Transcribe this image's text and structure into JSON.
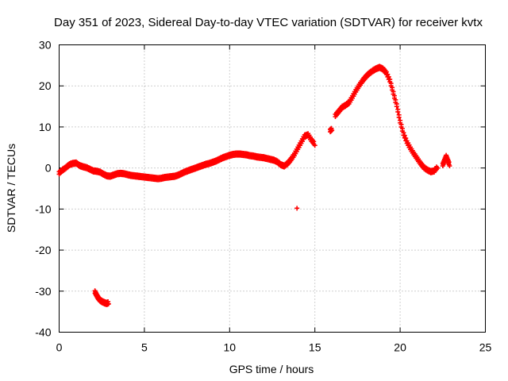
{
  "chart_data": {
    "type": "scatter",
    "title": "Day 351 of 2023, Sidereal Day-to-day VTEC variation (SDTVAR) for receiver kvtx",
    "xlabel": "GPS time / hours",
    "ylabel": "SDTVAR / TECUs",
    "xlim": [
      0,
      25
    ],
    "ylim": [
      -40,
      30
    ],
    "xticks": [
      0,
      5,
      10,
      15,
      20,
      25
    ],
    "yticks": [
      -40,
      -30,
      -20,
      -10,
      0,
      10,
      20,
      30
    ],
    "grid": true,
    "marker": "+",
    "series": [
      {
        "name": "SDTVAR",
        "color": "#ff0000",
        "segments": [
          [
            [
              0.0,
              -1.5
            ],
            [
              0.2,
              -0.8
            ],
            [
              0.4,
              -0.2
            ],
            [
              0.6,
              0.5
            ],
            [
              0.8,
              0.8
            ],
            [
              1.0,
              0.9
            ],
            [
              1.2,
              0.3
            ],
            [
              1.4,
              0.0
            ],
            [
              1.6,
              -0.2
            ],
            [
              1.8,
              -0.6
            ],
            [
              2.0,
              -1.0
            ],
            [
              2.2,
              -1.1
            ],
            [
              2.4,
              -1.3
            ],
            [
              2.6,
              -1.8
            ],
            [
              2.8,
              -2.2
            ],
            [
              3.0,
              -2.3
            ],
            [
              3.2,
              -2.0
            ],
            [
              3.4,
              -1.7
            ],
            [
              3.6,
              -1.6
            ],
            [
              3.8,
              -1.7
            ],
            [
              4.0,
              -1.9
            ],
            [
              4.2,
              -2.1
            ],
            [
              4.4,
              -2.2
            ],
            [
              4.6,
              -2.3
            ],
            [
              4.8,
              -2.4
            ],
            [
              5.0,
              -2.5
            ],
            [
              5.2,
              -2.6
            ],
            [
              5.4,
              -2.7
            ],
            [
              5.6,
              -2.8
            ],
            [
              5.8,
              -2.9
            ],
            [
              6.0,
              -2.8
            ],
            [
              6.2,
              -2.6
            ],
            [
              6.4,
              -2.5
            ],
            [
              6.6,
              -2.4
            ],
            [
              6.8,
              -2.3
            ],
            [
              7.0,
              -2.0
            ],
            [
              7.2,
              -1.6
            ],
            [
              7.4,
              -1.2
            ],
            [
              7.6,
              -0.9
            ],
            [
              7.8,
              -0.6
            ],
            [
              8.0,
              -0.3
            ],
            [
              8.2,
              0.0
            ],
            [
              8.4,
              0.3
            ],
            [
              8.6,
              0.6
            ],
            [
              8.8,
              0.8
            ],
            [
              9.0,
              1.1
            ],
            [
              9.2,
              1.4
            ],
            [
              9.4,
              1.8
            ],
            [
              9.6,
              2.2
            ],
            [
              9.8,
              2.5
            ],
            [
              10.0,
              2.8
            ],
            [
              10.2,
              3.0
            ],
            [
              10.4,
              3.1
            ],
            [
              10.6,
              3.1
            ],
            [
              10.8,
              3.0
            ],
            [
              11.0,
              2.9
            ],
            [
              11.2,
              2.7
            ],
            [
              11.4,
              2.6
            ],
            [
              11.6,
              2.4
            ],
            [
              11.8,
              2.3
            ],
            [
              12.0,
              2.2
            ],
            [
              12.2,
              2.0
            ],
            [
              12.4,
              1.8
            ],
            [
              12.6,
              1.6
            ],
            [
              12.8,
              1.2
            ],
            [
              13.0,
              0.5
            ],
            [
              13.2,
              0.2
            ],
            [
              13.4,
              0.8
            ],
            [
              13.6,
              1.8
            ],
            [
              13.8,
              3.0
            ],
            [
              14.0,
              4.5
            ],
            [
              14.2,
              6.0
            ],
            [
              14.4,
              7.5
            ],
            [
              14.6,
              7.8
            ],
            [
              14.8,
              6.5
            ],
            [
              15.0,
              5.5
            ]
          ],
          [
            [
              2.1,
              -30.5
            ],
            [
              2.2,
              -31.3
            ],
            [
              2.3,
              -32.0
            ],
            [
              2.4,
              -32.5
            ],
            [
              2.5,
              -32.8
            ],
            [
              2.6,
              -33.0
            ],
            [
              2.7,
              -33.2
            ],
            [
              2.8,
              -33.3
            ],
            [
              2.9,
              -33.1
            ]
          ],
          [
            [
              13.95,
              -9.8
            ]
          ],
          [
            [
              15.9,
              8.8
            ],
            [
              16.0,
              9.2
            ]
          ],
          [
            [
              16.2,
              12.5
            ],
            [
              16.4,
              13.5
            ],
            [
              16.6,
              14.5
            ],
            [
              16.8,
              15.0
            ],
            [
              17.0,
              15.6
            ],
            [
              17.2,
              17.0
            ],
            [
              17.4,
              18.5
            ],
            [
              17.6,
              19.8
            ],
            [
              17.8,
              21.0
            ],
            [
              18.0,
              22.0
            ],
            [
              18.2,
              22.8
            ],
            [
              18.4,
              23.4
            ],
            [
              18.6,
              23.9
            ],
            [
              18.8,
              24.2
            ],
            [
              19.0,
              23.8
            ],
            [
              19.2,
              22.8
            ],
            [
              19.4,
              21.0
            ],
            [
              19.6,
              18.0
            ],
            [
              19.8,
              15.0
            ],
            [
              20.0,
              11.0
            ],
            [
              20.2,
              8.0
            ],
            [
              20.4,
              6.0
            ],
            [
              20.6,
              4.5
            ],
            [
              20.8,
              3.2
            ],
            [
              21.0,
              2.0
            ],
            [
              21.2,
              0.8
            ],
            [
              21.4,
              -0.2
            ],
            [
              21.6,
              -0.8
            ],
            [
              21.8,
              -1.2
            ],
            [
              22.0,
              -1.0
            ],
            [
              22.2,
              0.0
            ]
          ],
          [
            [
              22.5,
              0.5
            ],
            [
              22.6,
              1.5
            ],
            [
              22.7,
              2.5
            ],
            [
              22.8,
              1.5
            ],
            [
              22.9,
              0.5
            ]
          ]
        ]
      }
    ]
  }
}
